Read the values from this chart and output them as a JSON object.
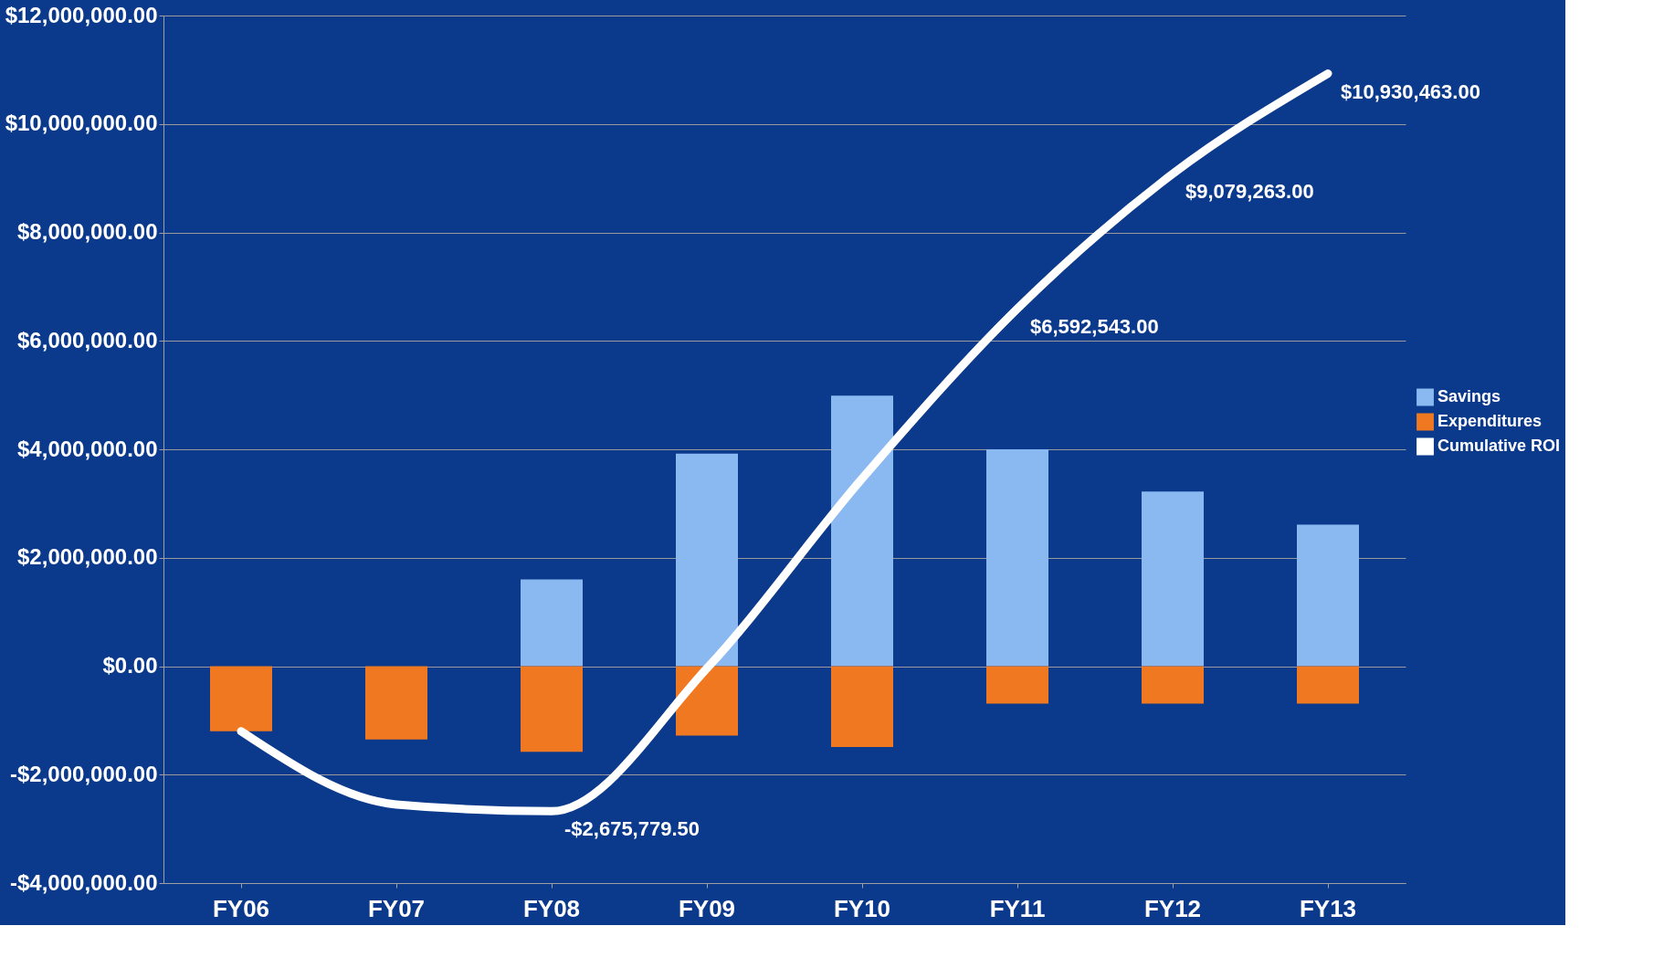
{
  "chart_data": {
    "type": "bar",
    "categories": [
      "FY06",
      "FY07",
      "FY08",
      "FY09",
      "FY10",
      "FY11",
      "FY12",
      "FY13"
    ],
    "series": [
      {
        "name": "Savings",
        "type": "bar",
        "color": "#8ab8f0",
        "values": [
          0,
          0,
          1600000,
          3920000,
          4990000,
          4000000,
          3220000,
          2610000
        ]
      },
      {
        "name": "Expenditures",
        "type": "bar",
        "color": "#f07820",
        "values": [
          -1200000,
          -1350000,
          -1580000,
          -1280000,
          -1490000,
          -690000,
          -690000,
          -690000
        ]
      },
      {
        "name": "Cumulative ROI",
        "type": "line",
        "color": "#ffffff",
        "values": [
          -1200000,
          -2550000,
          -2675779.5,
          -40000,
          3460000,
          6592543,
          9079263,
          10930463
        ],
        "value_labels": [
          null,
          null,
          "-$2,675,779.50",
          null,
          null,
          "$6,592,543.00",
          "$9,079,263.00",
          "$10,930,463.00"
        ]
      }
    ],
    "ylim": [
      -4000000,
      12000000
    ],
    "yticks": [
      {
        "value": -4000000,
        "label": "-$4,000,000.00"
      },
      {
        "value": -2000000,
        "label": "-$2,000,000.00"
      },
      {
        "value": 0,
        "label": "$0.00"
      },
      {
        "value": 2000000,
        "label": "$2,000,000.00"
      },
      {
        "value": 4000000,
        "label": "$4,000,000.00"
      },
      {
        "value": 6000000,
        "label": "$6,000,000.00"
      },
      {
        "value": 8000000,
        "label": "$8,000,000.00"
      },
      {
        "value": 10000000,
        "label": "$10,000,000.00"
      },
      {
        "value": 12000000,
        "label": "$12,000,000.00"
      }
    ],
    "grid": "y",
    "legend": "right",
    "stacked": true,
    "marker": "none",
    "line_style": "solid"
  }
}
